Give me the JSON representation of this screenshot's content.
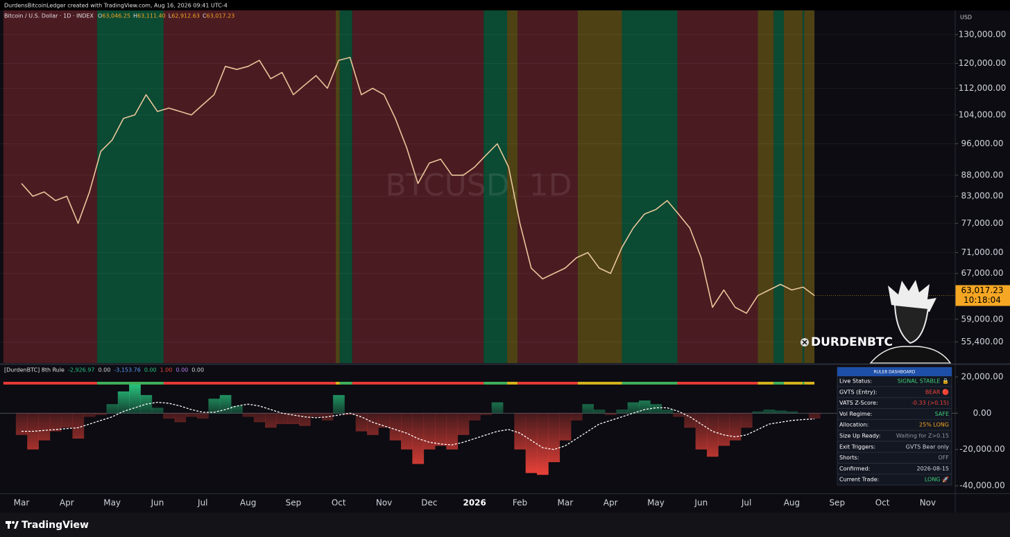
{
  "header": "DurdensBitcoinLedger created with TradingView.com, Aug 16, 2026 09:41 UTC-4",
  "footer": "TradingView",
  "brand": "DURDENBTC",
  "chart_data": [
    {
      "type": "line",
      "title": "Bitcoin / U.S. Dollar · 1D · INDEX",
      "ohlc": [
        {
          "key": "O",
          "value": "63,046.25"
        },
        {
          "key": "H",
          "value": "63,111.40"
        },
        {
          "key": "L",
          "value": "62,912.63"
        },
        {
          "key": "C",
          "value": "63,017.23"
        }
      ],
      "watermark": "BTCUSD, 1D",
      "currency": "USD",
      "last_price_label": "63,017.23",
      "countdown": "10:18:04",
      "log_scale": true,
      "grid": true,
      "categories": [
        "Mar",
        null,
        null,
        null,
        "Apr",
        null,
        null,
        null,
        "May",
        null,
        null,
        null,
        "Jun",
        null,
        null,
        null,
        "Jul",
        null,
        null,
        null,
        "Aug",
        null,
        null,
        null,
        "Sep",
        null,
        null,
        null,
        "Oct",
        null,
        null,
        null,
        "Nov",
        null,
        null,
        null,
        "Dec",
        null,
        null,
        null,
        "2026",
        null,
        null,
        null,
        "Feb",
        null,
        null,
        null,
        "Mar",
        null,
        null,
        null,
        "Apr",
        null,
        null,
        null,
        "May",
        null,
        null,
        null,
        "Jun",
        null,
        null,
        null,
        "Jul",
        null,
        null,
        null,
        "Aug",
        null,
        null,
        null,
        "Sep",
        null,
        null,
        null,
        "Oct",
        null,
        null,
        null,
        "Nov",
        null,
        null,
        null
      ],
      "series": [
        {
          "name": "BTCUSD",
          "color": "#e9c79a",
          "values": [
            86000,
            83000,
            84000,
            82000,
            83000,
            77000,
            84000,
            94000,
            97000,
            103000,
            104000,
            110000,
            105000,
            106000,
            105000,
            104000,
            107000,
            110000,
            119000,
            118000,
            119000,
            121000,
            115000,
            117000,
            110000,
            113000,
            116000,
            112000,
            121000,
            122000,
            110000,
            112000,
            110000,
            103000,
            95000,
            86000,
            91000,
            92000,
            88000,
            88000,
            90000,
            93000,
            96000,
            90000,
            77000,
            68000,
            66000,
            67000,
            68000,
            70000,
            71000,
            68000,
            67000,
            72000,
            76000,
            79000,
            80000,
            82000,
            79000,
            76000,
            70000,
            61000,
            64000,
            61000,
            60000,
            63000,
            64000,
            65000,
            64000,
            64500,
            63017.23,
            null,
            null,
            null,
            null,
            null,
            null,
            null,
            null,
            null,
            null,
            null,
            null,
            null
          ]
        }
      ],
      "regimes": [
        {
          "start": -1.6,
          "end": 6.67,
          "color": "#4b1b22",
          "strip_color": "#e53935"
        },
        {
          "start": 6.67,
          "end": 12.55,
          "color": "#0b4a33",
          "strip_color": "#3fae5a"
        },
        {
          "start": 12.55,
          "end": 27.74,
          "color": "#4b1b22",
          "strip_color": "#e53935"
        },
        {
          "start": 27.74,
          "end": 28.1,
          "color": "#4e4215",
          "strip_color": "#d4b21c"
        },
        {
          "start": 28.1,
          "end": 29.2,
          "color": "#0b4a33",
          "strip_color": "#3fae5a"
        },
        {
          "start": 29.2,
          "end": 40.8,
          "color": "#4b1b22",
          "strip_color": "#e53935"
        },
        {
          "start": 40.8,
          "end": 42.87,
          "color": "#0b4a33",
          "strip_color": "#3fae5a"
        },
        {
          "start": 42.87,
          "end": 43.8,
          "color": "#4e4215",
          "strip_color": "#d4b21c"
        },
        {
          "start": 43.8,
          "end": 49.1,
          "color": "#4b1b22",
          "strip_color": "#e53935"
        },
        {
          "start": 49.1,
          "end": 53.0,
          "color": "#4e4215",
          "strip_color": "#d4b21c"
        },
        {
          "start": 53.0,
          "end": 57.9,
          "color": "#0b4a33",
          "strip_color": "#3fae5a"
        },
        {
          "start": 57.9,
          "end": 65.0,
          "color": "#4b1b22",
          "strip_color": "#e53935"
        },
        {
          "start": 65.0,
          "end": 66.4,
          "color": "#4e4215",
          "strip_color": "#d4b21c"
        },
        {
          "start": 66.4,
          "end": 67.3,
          "color": "#0b4a33",
          "strip_color": "#3fae5a"
        },
        {
          "start": 67.3,
          "end": 68.95,
          "color": "#4e4215",
          "strip_color": "#d4b21c"
        },
        {
          "start": 68.95,
          "end": 69.1,
          "color": "#0b4a33",
          "strip_color": "#3fae5a"
        },
        {
          "start": 69.1,
          "end": 70,
          "color": "#4e4215",
          "strip_color": "#d4b21c"
        }
      ],
      "ylim": [
        52250,
        139000
      ],
      "yticks": [
        {
          "value": 130000,
          "label": "130,000.00"
        },
        {
          "value": 120000,
          "label": "120,000.00"
        },
        {
          "value": 112000,
          "label": "112,000.00"
        },
        {
          "value": 104000,
          "label": "104,000.00"
        },
        {
          "value": 96000,
          "label": "96,000.00"
        },
        {
          "value": 88000,
          "label": "88,000.00"
        },
        {
          "value": 83000,
          "label": "83,000.00"
        },
        {
          "value": 77000,
          "label": "77,000.00"
        },
        {
          "value": 71000,
          "label": "71,000.00"
        },
        {
          "value": 67000,
          "label": "67,000.00"
        },
        {
          "value": 59000,
          "label": "59,000.00"
        },
        {
          "value": 55400,
          "label": "55,400.00"
        }
      ]
    },
    {
      "type": "oscillator",
      "title": "[DurdenBTC] 8th Rule",
      "legend_values": [
        {
          "text": "-2,926.97",
          "color": "#26c281"
        },
        {
          "text": "0.00",
          "color": "#d1d4dc"
        },
        {
          "text": "-3,153.76",
          "color": "#5b9cf6"
        },
        {
          "text": "0.00",
          "color": "#26c281"
        },
        {
          "text": "1.00",
          "color": "#f0433a"
        },
        {
          "text": "0.00",
          "color": "#b47ce8"
        },
        {
          "text": "0.00",
          "color": "#d1d4dc"
        }
      ],
      "series": [
        {
          "name": "Oscillator",
          "color": "#2bd98a",
          "negative_color": "#f0433a",
          "values": [
            -12000,
            -20000,
            -15000,
            -10000,
            -8000,
            -14000,
            -2000,
            -1000,
            5000,
            12000,
            16000,
            10000,
            3000,
            -3000,
            -5000,
            -2000,
            -3000,
            8000,
            10000,
            4000,
            -2000,
            -5000,
            -8000,
            -6000,
            -6000,
            -7000,
            -2000,
            -4000,
            10000,
            -1000,
            -10000,
            -12000,
            -8000,
            -15000,
            -20000,
            -28000,
            -20000,
            -18000,
            -20000,
            -12000,
            -4000,
            -1000,
            6000,
            0,
            -20000,
            -33000,
            -34000,
            -27000,
            -15000,
            -4000,
            5000,
            2000,
            -1000,
            2000,
            6000,
            7000,
            5000,
            2000,
            -2000,
            -8000,
            -20000,
            -24000,
            -18000,
            -15000,
            -8000,
            1000,
            2000,
            1500,
            1000,
            0,
            -2926.97,
            null,
            null,
            null,
            null,
            null,
            null,
            null,
            null,
            null,
            null,
            null,
            null,
            null
          ]
        },
        {
          "name": "Signal",
          "color": "#ffffff",
          "values": [
            -10000,
            -10000,
            -9500,
            -9000,
            -8500,
            -8000,
            -6000,
            -4000,
            -2000,
            1000,
            3000,
            5000,
            6000,
            5500,
            4000,
            2000,
            500,
            500,
            2000,
            4000,
            5000,
            4000,
            2000,
            0,
            -1000,
            -2000,
            -2500,
            -2000,
            -1000,
            0,
            -2000,
            -5000,
            -7000,
            -9000,
            -11000,
            -14000,
            -16000,
            -17000,
            -17500,
            -16000,
            -14000,
            -12000,
            -10000,
            -9000,
            -11000,
            -15000,
            -19000,
            -20000,
            -18000,
            -14000,
            -10000,
            -6000,
            -4000,
            -2000,
            0,
            2000,
            3000,
            3000,
            1000,
            -2000,
            -6000,
            -10000,
            -12000,
            -13000,
            -12000,
            -9000,
            -6000,
            -5000,
            -4000,
            -3500,
            -3153.76,
            null,
            null,
            null,
            null,
            null,
            null,
            null,
            null,
            null,
            null,
            null,
            null,
            null
          ]
        }
      ],
      "ylim": [
        -44200,
        26500
      ],
      "yticks": [
        {
          "value": 20000,
          "label": "20,000.00"
        },
        {
          "value": 0,
          "label": "0.00"
        },
        {
          "value": -20000,
          "label": "-20,000.00"
        },
        {
          "value": -40000,
          "label": "-40,000.00"
        }
      ]
    }
  ],
  "dashboard": {
    "title": "RULE8 DASHBOARD",
    "rows": [
      {
        "label": "Live Status:",
        "value": "SIGNAL STABLE 🔒",
        "color": "#3fd17a"
      },
      {
        "label": "GVTS (Entry):",
        "value": "BEAR 🔴",
        "color": "#f0433a"
      },
      {
        "label": "VATS Z-Score:",
        "value": "-0.33 (>0.15)",
        "color": "#f0433a"
      },
      {
        "label": "Vol Regime:",
        "value": "SAFE",
        "color": "#3fd17a"
      },
      {
        "label": "Allocation:",
        "value": "25% LONG",
        "color": "#f5a623"
      },
      {
        "label": "Size Up Ready:",
        "value": "Waiting for Z>0.15",
        "color": "#9598a1"
      },
      {
        "label": "Exit Triggers:",
        "value": "GVTS Bear only",
        "color": "#d1d4dc"
      },
      {
        "label": "Shorts:",
        "value": "OFF",
        "color": "#9598a1"
      },
      {
        "label": "Confirmed:",
        "value": "2026-08-15",
        "color": "#d1d4dc"
      },
      {
        "label": "Current Trade:",
        "value": "LONG 🚀",
        "color": "#3fd17a"
      }
    ]
  }
}
